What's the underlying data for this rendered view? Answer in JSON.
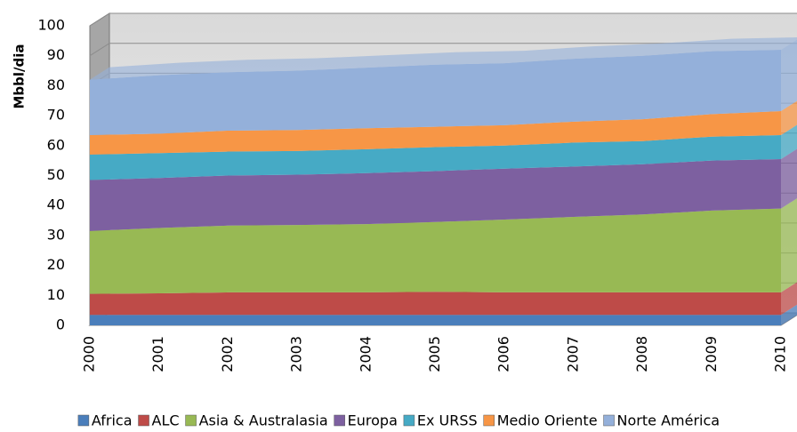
{
  "chart_data": {
    "type": "area",
    "y_label": "Mbbl/dia",
    "categories": [
      "2000",
      "2001",
      "2002",
      "2003",
      "2004",
      "2005",
      "2006",
      "2007",
      "2008",
      "2009",
      "2010"
    ],
    "series": [
      {
        "name": "Africa",
        "color": "#4a7ebb",
        "values": [
          3.5,
          3.5,
          3.5,
          3.5,
          3.5,
          3.5,
          3.5,
          3.5,
          3.5,
          3.5,
          3.5
        ]
      },
      {
        "name": "ALC",
        "color": "#be4b48",
        "values": [
          7,
          7.2,
          7.5,
          7.5,
          7.5,
          7.7,
          7.5,
          7.5,
          7.5,
          7.5,
          7.5
        ]
      },
      {
        "name": "Asia & Australasia",
        "color": "#98b954",
        "values": [
          21,
          21.8,
          22.3,
          22.5,
          22.8,
          23.3,
          24.3,
          25.2,
          26,
          27.3,
          28
        ]
      },
      {
        "name": "Europa",
        "color": "#7d60a0",
        "values": [
          17,
          16.7,
          16.7,
          16.8,
          17,
          17,
          17,
          16.8,
          16.8,
          16.7,
          16.5
        ]
      },
      {
        "name": "Ex URSS",
        "color": "#46aac5",
        "values": [
          8.5,
          8.3,
          8,
          7.9,
          8,
          8,
          7.7,
          8,
          7.7,
          8,
          8
        ]
      },
      {
        "name": "Medio Oriente",
        "color": "#f79646",
        "values": [
          6.5,
          6.5,
          7,
          7,
          7,
          6.8,
          6.8,
          7,
          7.3,
          7.5,
          8
        ]
      },
      {
        "name": "Norte América",
        "color": "#94b0da",
        "values": [
          18.5,
          19.5,
          19.5,
          19.8,
          20.2,
          20.7,
          20.7,
          21,
          21.2,
          21,
          20.5
        ]
      }
    ],
    "ylim": [
      0,
      100
    ],
    "yticks": [
      0,
      10,
      20,
      30,
      40,
      50,
      60,
      70,
      80,
      90,
      100
    ],
    "grid": true,
    "legend": "bottom"
  }
}
